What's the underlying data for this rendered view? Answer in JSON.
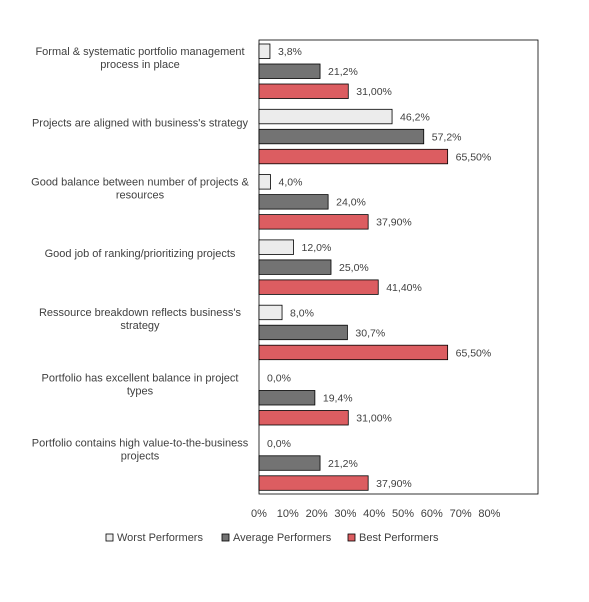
{
  "chart_data": {
    "type": "bar",
    "orientation": "horizontal",
    "title": "",
    "xlabel": "",
    "ylabel": "",
    "xlim": [
      0,
      80
    ],
    "x_ticks": [
      "0%",
      "10%",
      "20%",
      "30%",
      "40%",
      "50%",
      "60%",
      "70%",
      "80%"
    ],
    "grid": false,
    "legend_position": "bottom",
    "categories": [
      [
        "Formal & systematic portfolio management",
        "process in place"
      ],
      [
        "Projects are aligned with business's strategy"
      ],
      [
        "Good balance between number of projects &",
        "resources"
      ],
      [
        "Good job of ranking/prioritizing projects"
      ],
      [
        "Ressource breakdown reflects business's",
        "strategy"
      ],
      [
        "Portfolio has excellent balance in project",
        "types"
      ],
      [
        "Portfolio contains high value-to-the-business",
        "projects"
      ]
    ],
    "series": [
      {
        "name": "Worst Performers",
        "color": "#ececec",
        "values": [
          3.8,
          46.2,
          4.0,
          12.0,
          8.0,
          0.0,
          0.0
        ],
        "labels": [
          "3,8%",
          "46,2%",
          "4,0%",
          "12,0%",
          "8,0%",
          "0,0%",
          "0,0%"
        ]
      },
      {
        "name": "Average Performers",
        "color": "#737373",
        "values": [
          21.2,
          57.2,
          24.0,
          25.0,
          30.7,
          19.4,
          21.2
        ],
        "labels": [
          "21,2%",
          "57,2%",
          "24,0%",
          "25,0%",
          "30,7%",
          "19,4%",
          "21,2%"
        ]
      },
      {
        "name": "Best Performers",
        "color": "#dc5d61",
        "values": [
          31.0,
          65.5,
          37.9,
          41.4,
          65.5,
          31.0,
          37.9
        ],
        "labels": [
          "31,00%",
          "65,50%",
          "37,90%",
          "41,40%",
          "65,50%",
          "31,00%",
          "37,90%"
        ]
      }
    ]
  }
}
